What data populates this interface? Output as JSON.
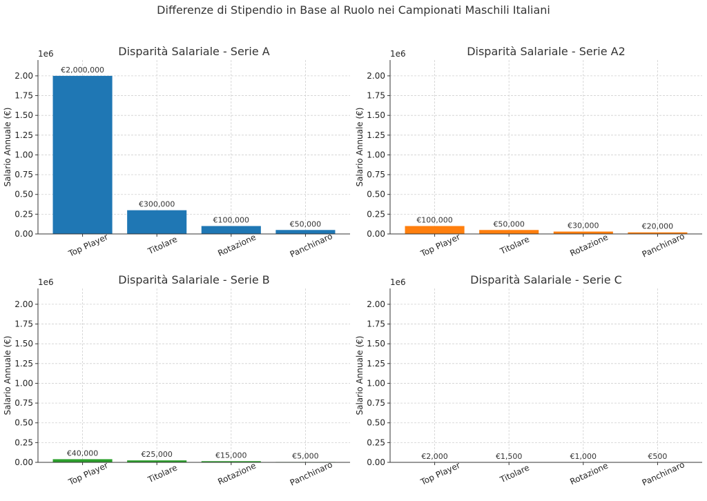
{
  "figure_title": "Differenze di Stipendio in Base al Ruolo nei Campionati Maschili Italiani",
  "chart_data": [
    {
      "type": "bar",
      "title": "Disparità Salariale - Serie A",
      "ylabel": "Salario Annuale (€)",
      "categories": [
        "Top Player",
        "Titolare",
        "Rotazione",
        "Panchinaro"
      ],
      "values": [
        2000000,
        300000,
        100000,
        50000
      ],
      "value_labels": [
        "€2,000,000",
        "€300,000",
        "€100,000",
        "€50,000"
      ],
      "ylim": [
        0,
        2200000
      ],
      "yticks": [
        0,
        250000,
        500000,
        750000,
        1000000,
        1250000,
        1500000,
        1750000,
        2000000
      ],
      "ytick_labels": [
        "0.00",
        "0.25",
        "0.50",
        "0.75",
        "1.00",
        "1.25",
        "1.50",
        "1.75",
        "2.00"
      ],
      "offset_label": "1e6",
      "color": "#1f77b4",
      "grid": true
    },
    {
      "type": "bar",
      "title": "Disparità Salariale - Serie A2",
      "ylabel": "Salario Annuale (€)",
      "categories": [
        "Top Player",
        "Titolare",
        "Rotazione",
        "Panchinaro"
      ],
      "values": [
        100000,
        50000,
        30000,
        20000
      ],
      "value_labels": [
        "€100,000",
        "€50,000",
        "€30,000",
        "€20,000"
      ],
      "ylim": [
        0,
        2200000
      ],
      "yticks": [
        0,
        250000,
        500000,
        750000,
        1000000,
        1250000,
        1500000,
        1750000,
        2000000
      ],
      "ytick_labels": [
        "0.00",
        "0.25",
        "0.50",
        "0.75",
        "1.00",
        "1.25",
        "1.50",
        "1.75",
        "2.00"
      ],
      "offset_label": "1e6",
      "color": "#ff7f0e",
      "grid": true
    },
    {
      "type": "bar",
      "title": "Disparità Salariale - Serie B",
      "ylabel": "Salario Annuale (€)",
      "categories": [
        "Top Player",
        "Titolare",
        "Rotazione",
        "Panchinaro"
      ],
      "values": [
        40000,
        25000,
        15000,
        5000
      ],
      "value_labels": [
        "€40,000",
        "€25,000",
        "€15,000",
        "€5,000"
      ],
      "ylim": [
        0,
        2200000
      ],
      "yticks": [
        0,
        250000,
        500000,
        750000,
        1000000,
        1250000,
        1500000,
        1750000,
        2000000
      ],
      "ytick_labels": [
        "0.00",
        "0.25",
        "0.50",
        "0.75",
        "1.00",
        "1.25",
        "1.50",
        "1.75",
        "2.00"
      ],
      "offset_label": "1e6",
      "color": "#2ca02c",
      "grid": true
    },
    {
      "type": "bar",
      "title": "Disparità Salariale - Serie C",
      "ylabel": "Salario Annuale (€)",
      "categories": [
        "Top Player",
        "Titolare",
        "Rotazione",
        "Panchinaro"
      ],
      "values": [
        2000,
        1500,
        1000,
        500
      ],
      "value_labels": [
        "€2,000",
        "€1,500",
        "€1,000",
        "€500"
      ],
      "ylim": [
        0,
        2200000
      ],
      "yticks": [
        0,
        250000,
        500000,
        750000,
        1000000,
        1250000,
        1500000,
        1750000,
        2000000
      ],
      "ytick_labels": [
        "0.00",
        "0.25",
        "0.50",
        "0.75",
        "1.00",
        "1.25",
        "1.50",
        "1.75",
        "2.00"
      ],
      "offset_label": "1e6",
      "color": "#d62728",
      "grid": true
    }
  ]
}
